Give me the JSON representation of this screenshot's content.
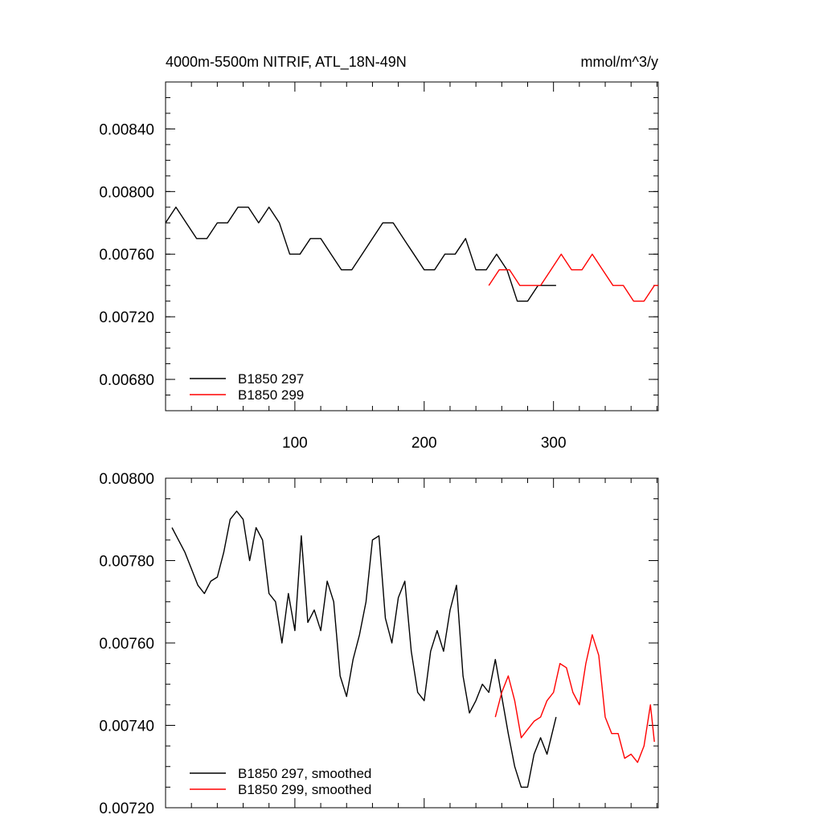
{
  "chart_data": [
    {
      "type": "line",
      "title": "4000m-5500m NITRIF, ATL_18N-49N",
      "units": "mmol/m^3/y",
      "xlim": [
        0,
        381
      ],
      "ylim": [
        0.0066,
        0.0087
      ],
      "x_ticks": [
        100,
        200,
        300
      ],
      "x_tick_labels": [
        "100",
        "200",
        "300"
      ],
      "y_ticks": [
        0.0068,
        0.0072,
        0.0076,
        0.008,
        0.0084
      ],
      "y_tick_labels": [
        "0.00680",
        "0.00720",
        "0.00760",
        "0.00800",
        "0.00840"
      ],
      "legend_position": "bottom-left",
      "grid": false,
      "series": [
        {
          "name": "B1850 297",
          "color": "#000000",
          "x": [
            0,
            8,
            16,
            24,
            32,
            40,
            48,
            56,
            64,
            72,
            80,
            88,
            96,
            104,
            112,
            120,
            128,
            136,
            144,
            152,
            160,
            168,
            176,
            184,
            192,
            200,
            208,
            216,
            224,
            232,
            240,
            248,
            256,
            264,
            272,
            280,
            288,
            296,
            302
          ],
          "values": [
            0.0078,
            0.0079,
            0.0078,
            0.0077,
            0.0077,
            0.0078,
            0.0078,
            0.0079,
            0.0079,
            0.0078,
            0.0079,
            0.0078,
            0.0076,
            0.0076,
            0.0077,
            0.0077,
            0.0076,
            0.0075,
            0.0075,
            0.0076,
            0.0077,
            0.0078,
            0.0078,
            0.0077,
            0.0076,
            0.0075,
            0.0075,
            0.0076,
            0.0076,
            0.0077,
            0.0075,
            0.0075,
            0.0076,
            0.0075,
            0.0073,
            0.0073,
            0.0074,
            0.0074,
            0.0074
          ]
        },
        {
          "name": "B1850 299",
          "color": "#ff0000",
          "x": [
            250,
            258,
            266,
            274,
            282,
            290,
            298,
            306,
            314,
            322,
            330,
            338,
            346,
            354,
            362,
            370,
            378,
            381
          ],
          "values": [
            0.0074,
            0.0075,
            0.0075,
            0.0074,
            0.0074,
            0.0074,
            0.0075,
            0.0076,
            0.0075,
            0.0075,
            0.0076,
            0.0075,
            0.0074,
            0.0074,
            0.0073,
            0.0073,
            0.0074,
            0.0074
          ]
        }
      ]
    },
    {
      "type": "line",
      "xlim": [
        0,
        381
      ],
      "ylim": [
        0.0072,
        0.008
      ],
      "x_ticks": [
        100,
        200,
        300
      ],
      "y_ticks": [
        0.0072,
        0.0074,
        0.0076,
        0.0078,
        0.008
      ],
      "y_tick_labels": [
        "0.00720",
        "0.00740",
        "0.00760",
        "0.00780",
        "0.00800"
      ],
      "legend_position": "bottom-left",
      "grid": false,
      "series": [
        {
          "name": "B1850 297, smoothed",
          "color": "#000000",
          "x": [
            5,
            10,
            15,
            20,
            25,
            30,
            35,
            40,
            45,
            50,
            55,
            60,
            65,
            70,
            75,
            80,
            85,
            90,
            95,
            100,
            105,
            110,
            115,
            120,
            125,
            130,
            135,
            140,
            145,
            150,
            155,
            160,
            165,
            170,
            175,
            180,
            185,
            190,
            195,
            200,
            205,
            210,
            215,
            220,
            225,
            230,
            235,
            240,
            245,
            250,
            255,
            260,
            265,
            270,
            275,
            280,
            285,
            290,
            295,
            302
          ],
          "values": [
            0.00788,
            0.00785,
            0.00782,
            0.00778,
            0.00774,
            0.00772,
            0.00775,
            0.00776,
            0.00782,
            0.0079,
            0.00792,
            0.0079,
            0.0078,
            0.00788,
            0.00785,
            0.00772,
            0.0077,
            0.0076,
            0.00772,
            0.00763,
            0.00786,
            0.00765,
            0.00768,
            0.00763,
            0.00775,
            0.0077,
            0.00752,
            0.00747,
            0.00756,
            0.00762,
            0.0077,
            0.00785,
            0.00786,
            0.00766,
            0.0076,
            0.00771,
            0.00775,
            0.00758,
            0.00748,
            0.00746,
            0.00758,
            0.00763,
            0.00758,
            0.00768,
            0.00774,
            0.00752,
            0.00743,
            0.00746,
            0.0075,
            0.00748,
            0.00756,
            0.00747,
            0.00738,
            0.0073,
            0.00725,
            0.00725,
            0.00733,
            0.00737,
            0.00733,
            0.00742
          ]
        },
        {
          "name": "B1850 299, smoothed",
          "color": "#ff0000",
          "x": [
            255,
            260,
            265,
            270,
            275,
            280,
            285,
            290,
            295,
            300,
            305,
            310,
            315,
            320,
            325,
            330,
            335,
            340,
            345,
            350,
            355,
            360,
            365,
            370,
            375,
            378
          ],
          "values": [
            0.00742,
            0.00748,
            0.00752,
            0.00746,
            0.00737,
            0.00739,
            0.00741,
            0.00742,
            0.00746,
            0.00748,
            0.00755,
            0.00754,
            0.00748,
            0.00745,
            0.00755,
            0.00762,
            0.00757,
            0.00742,
            0.00738,
            0.00738,
            0.00732,
            0.00733,
            0.00731,
            0.00735,
            0.00745,
            0.00736
          ]
        }
      ]
    }
  ]
}
